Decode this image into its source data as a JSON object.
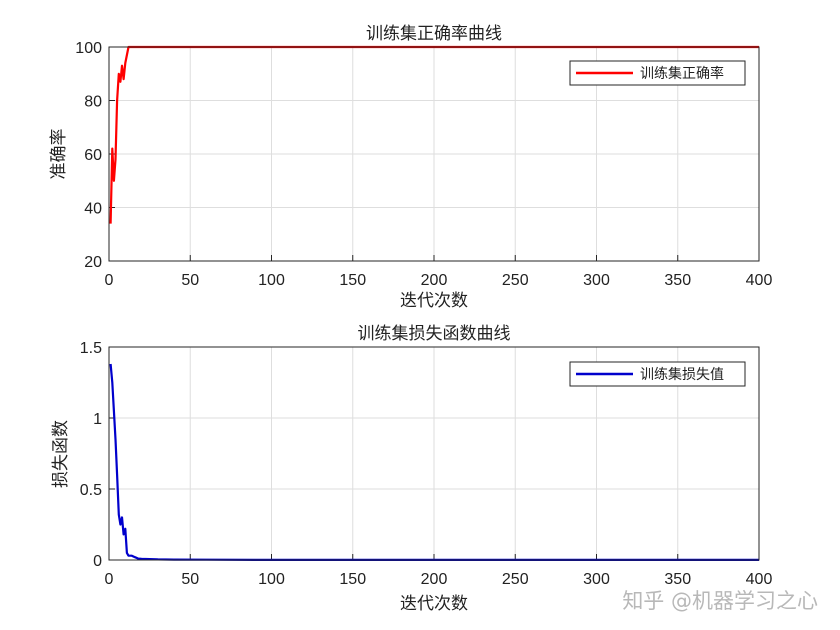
{
  "watermark": "知乎 @机器学习之心",
  "chart_data": [
    {
      "type": "line",
      "title": "训练集正确率曲线",
      "xlabel": "迭代次数",
      "ylabel": "准确率",
      "xlim": [
        0,
        400
      ],
      "ylim": [
        20,
        100
      ],
      "xticks": [
        0,
        50,
        100,
        150,
        200,
        250,
        300,
        350,
        400
      ],
      "yticks": [
        20,
        40,
        60,
        80,
        100
      ],
      "grid": true,
      "legend_position": "top-right",
      "series": [
        {
          "name": "训练集正确率",
          "color": "#ff0000",
          "x": [
            1,
            2,
            3,
            4,
            5,
            6,
            7,
            8,
            9,
            10,
            11,
            12,
            13,
            14,
            20,
            50,
            100,
            150,
            200,
            250,
            300,
            350,
            400
          ],
          "y": [
            34,
            62,
            50,
            58,
            80,
            90,
            87,
            93,
            88,
            94,
            97,
            100,
            100,
            100,
            100,
            100,
            100,
            100,
            100,
            100,
            100,
            100,
            100
          ]
        }
      ]
    },
    {
      "type": "line",
      "title": "训练集损失函数曲线",
      "xlabel": "迭代次数",
      "ylabel": "损失函数",
      "xlim": [
        0,
        400
      ],
      "ylim": [
        0,
        1.5
      ],
      "xticks": [
        0,
        50,
        100,
        150,
        200,
        250,
        300,
        350,
        400
      ],
      "yticks": [
        0,
        0.5,
        1,
        1.5
      ],
      "grid": true,
      "legend_position": "top-right",
      "series": [
        {
          "name": "训练集损失值",
          "color": "#0000cc",
          "x": [
            1,
            2,
            3,
            4,
            5,
            6,
            7,
            8,
            9,
            10,
            11,
            12,
            14,
            16,
            18,
            20,
            25,
            30,
            40,
            60,
            100,
            150,
            200,
            250,
            300,
            350,
            400
          ],
          "y": [
            1.38,
            1.25,
            1.05,
            0.85,
            0.6,
            0.32,
            0.25,
            0.3,
            0.18,
            0.22,
            0.05,
            0.03,
            0.03,
            0.02,
            0.01,
            0.008,
            0.006,
            0.004,
            0.003,
            0.002,
            0.001,
            0.001,
            0.001,
            0.001,
            0.001,
            0.001,
            0.001
          ]
        }
      ]
    }
  ]
}
